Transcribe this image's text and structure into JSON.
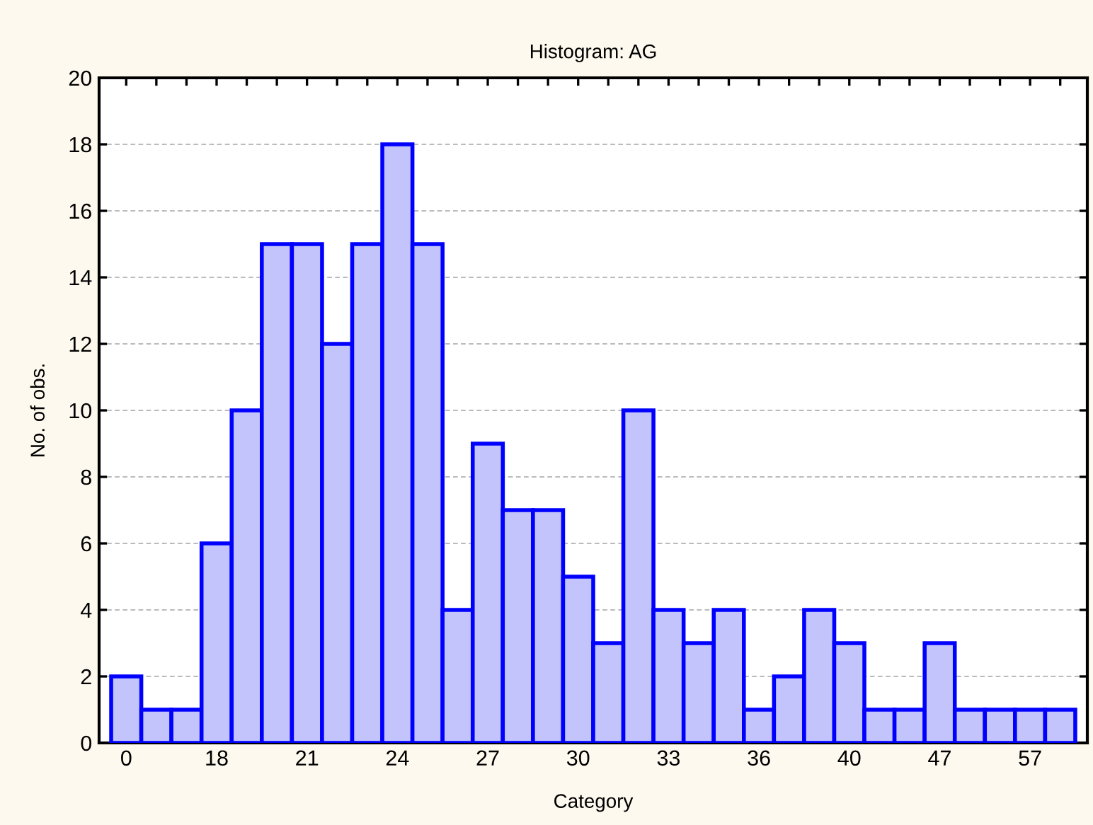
{
  "chart_data": {
    "type": "bar",
    "title": "Histogram: AG",
    "xlabel": "Category",
    "ylabel": "No. of obs.",
    "categories": [
      "0",
      null,
      null,
      "18",
      null,
      null,
      "21",
      null,
      null,
      "24",
      null,
      null,
      "27",
      null,
      null,
      "30",
      null,
      null,
      "33",
      null,
      null,
      "36",
      null,
      null,
      "40",
      null,
      null,
      "47",
      null,
      null,
      "57",
      null
    ],
    "values": [
      2,
      1,
      1,
      6,
      10,
      15,
      15,
      12,
      15,
      18,
      15,
      4,
      9,
      7,
      7,
      5,
      3,
      10,
      4,
      3,
      4,
      1,
      2,
      4,
      3,
      1,
      1,
      3,
      1,
      1,
      1,
      1
    ],
    "color": "#c4c4fc",
    "ylim": [
      0,
      20
    ],
    "yticks": [
      0,
      2,
      4,
      6,
      8,
      10,
      12,
      14,
      16,
      18,
      20
    ],
    "grid": "y"
  }
}
